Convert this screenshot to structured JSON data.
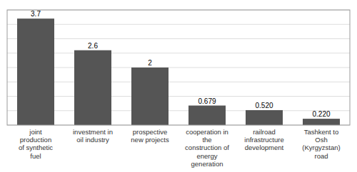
{
  "chart_data": {
    "type": "bar",
    "categories": [
      "joint\nproduction\nof synthetic\nfuel",
      "investment in\noil industry",
      "prospective\nnew projects",
      "cooperation in\nthe\nconstruction of\nenergy\ngeneration",
      "railroad\ninfrastructure\ndevelopment",
      "Tashkent to\nOsh\n(Kyrgyzstan)\nroad"
    ],
    "values": [
      3.7,
      2.6,
      2.0,
      0.679,
      0.52,
      0.22
    ],
    "value_labels": [
      "3.7",
      "2.6",
      "2",
      "0.679",
      "0.520",
      "0.220"
    ],
    "data_labels": true,
    "color": "#555555",
    "ylim": [
      0,
      4.0
    ],
    "yticks": [
      0,
      0.5,
      1,
      1.5,
      2,
      2.5,
      3,
      3.5,
      4
    ],
    "tick_labels": "x",
    "grid": true
  }
}
